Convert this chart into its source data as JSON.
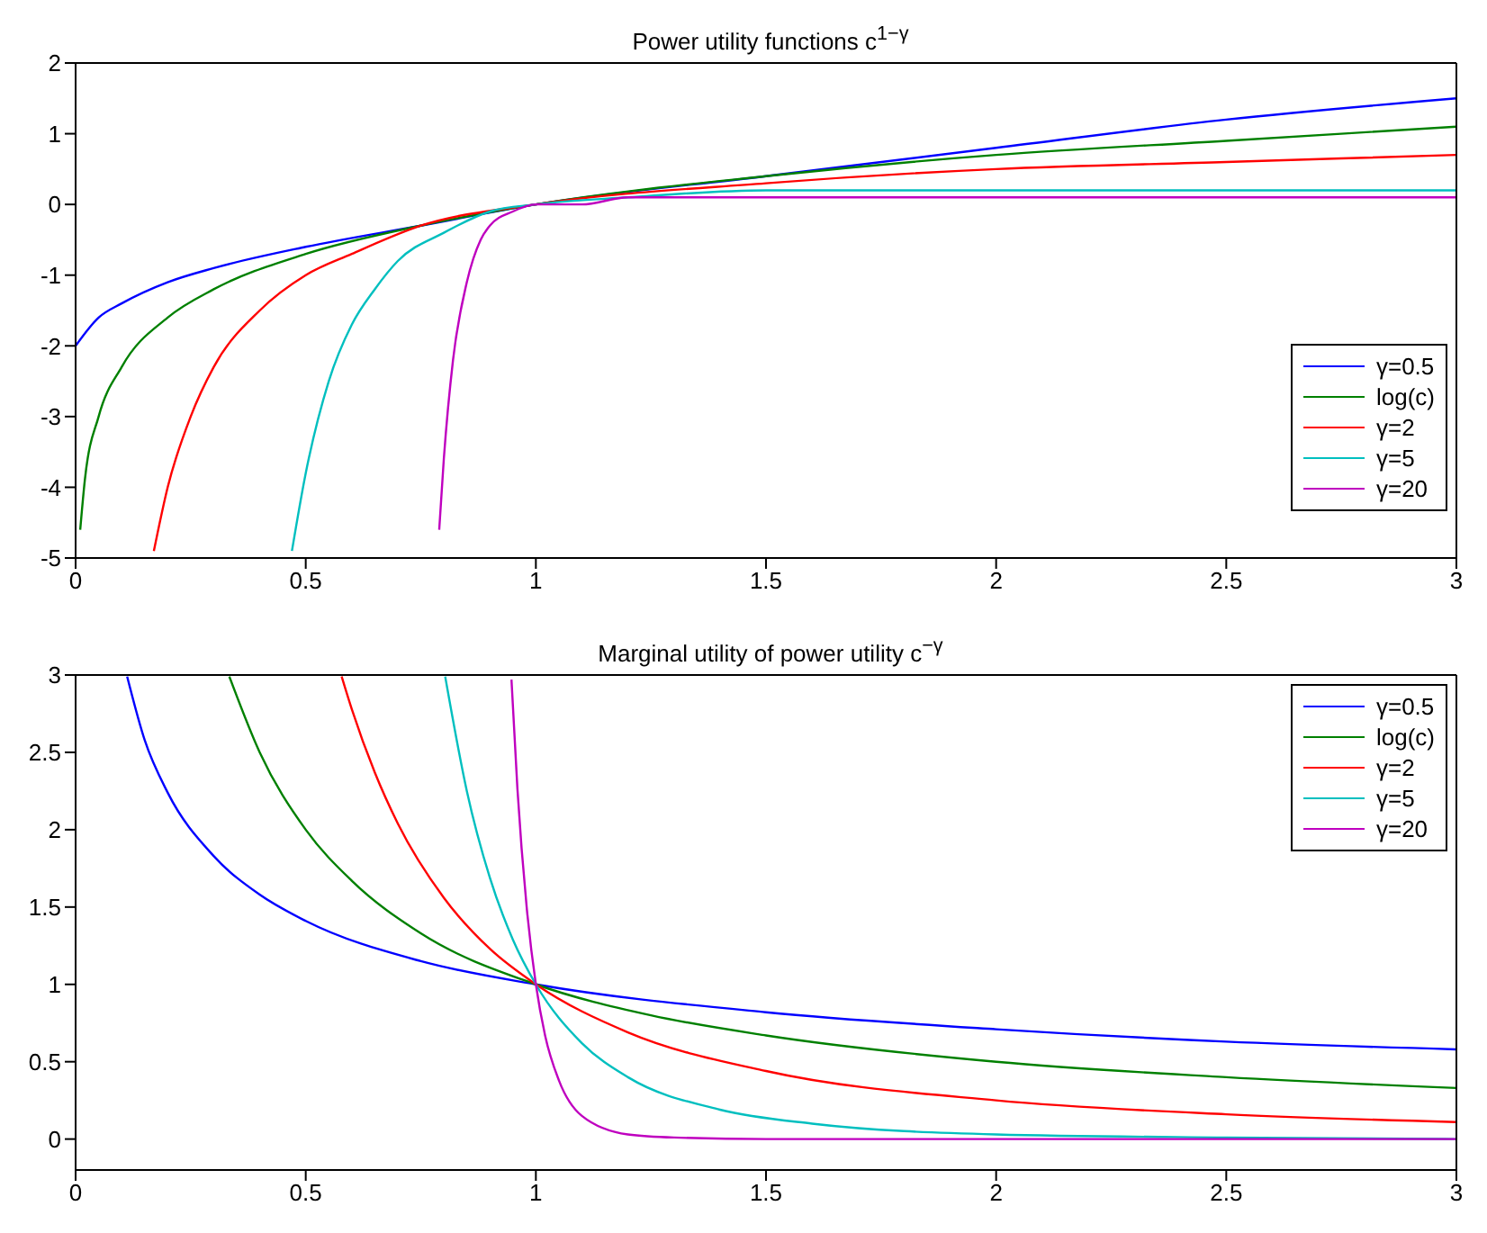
{
  "chart_data": [
    {
      "type": "line",
      "title": "Power utility functions c$^{1−γ}$",
      "xlim": [
        0,
        3
      ],
      "xticks": [
        0,
        0.5,
        1,
        1.5,
        2,
        2.5,
        3
      ],
      "ylim": [
        -5,
        2
      ],
      "yticks": [
        -5,
        -4,
        -3,
        -2,
        -1,
        0,
        1,
        2
      ],
      "grid": false,
      "legend": "bottom right",
      "marker": "none",
      "line_style": "solid",
      "series": [
        {
          "name": "γ=0.5",
          "color": "#0000ff",
          "x": [
            0,
            0.05,
            0.1,
            0.2,
            0.3,
            0.5,
            0.75,
            1,
            1.5,
            2,
            2.5,
            3
          ],
          "values": [
            -2,
            -1.6,
            -1.4,
            -1.1,
            -0.9,
            -0.6,
            -0.3,
            0,
            0.4,
            0.8,
            1.2,
            1.5
          ]
        },
        {
          "name": "log(c)",
          "color": "#008000",
          "x": [
            0.01,
            0.02,
            0.05,
            0.1,
            0.2,
            0.3,
            0.5,
            0.75,
            1,
            1.5,
            2,
            2.5,
            3
          ],
          "values": [
            -4.6,
            -3.9,
            -3,
            -2.3,
            -1.6,
            -1.2,
            -0.7,
            -0.3,
            0,
            0.4,
            0.7,
            0.9,
            1.1
          ]
        },
        {
          "name": "γ=2",
          "color": "#ff0000",
          "x": [
            0.17,
            0.2,
            0.25,
            0.3,
            0.4,
            0.5,
            0.6,
            0.75,
            1,
            1.5,
            2,
            2.5,
            3
          ],
          "values": [
            -4.9,
            -4,
            -3,
            -2.3,
            -1.5,
            -1,
            -0.7,
            -0.3,
            0,
            0.3,
            0.5,
            0.6,
            0.7
          ]
        },
        {
          "name": "γ=5",
          "color": "#00bfbf",
          "x": [
            0.47,
            0.5,
            0.55,
            0.6,
            0.65,
            0.7,
            0.8,
            0.9,
            1,
            1.2,
            1.5,
            2,
            2.5,
            3
          ],
          "values": [
            -4.9,
            -3.8,
            -2.5,
            -1.7,
            -1.2,
            -0.8,
            -0.4,
            -0.1,
            0,
            0.1,
            0.2,
            0.2,
            0.2,
            0.2
          ]
        },
        {
          "name": "γ=20",
          "color": "#bf00bf",
          "x": [
            0.79,
            0.8,
            0.82,
            0.85,
            0.88,
            0.9,
            0.95,
            1,
            1.1,
            1.2,
            1.5,
            2,
            3
          ],
          "values": [
            -4.6,
            -3.6,
            -2.2,
            -1.1,
            -0.5,
            -0.3,
            -0.1,
            0,
            0,
            0.1,
            0.1,
            0.1,
            0.1
          ]
        }
      ]
    },
    {
      "type": "line",
      "title": "Marginal utility of power utility  c$^{−γ}$",
      "xlim": [
        0,
        3
      ],
      "xticks": [
        0,
        0.5,
        1,
        1.5,
        2,
        2.5,
        3
      ],
      "ylim": [
        -0.2,
        3
      ],
      "yticks": [
        0,
        0.5,
        1,
        1.5,
        2,
        2.5,
        3
      ],
      "grid": false,
      "legend": "top right",
      "marker": "none",
      "line_style": "solid",
      "series": [
        {
          "name": "γ=0.5",
          "color": "#0000ff",
          "x": [
            0.112,
            0.15,
            0.2,
            0.3,
            0.4,
            0.5,
            0.75,
            1,
            1.5,
            2,
            2.5,
            3
          ],
          "values": [
            2.99,
            2.58,
            2.24,
            1.83,
            1.58,
            1.41,
            1.15,
            1,
            0.82,
            0.71,
            0.63,
            0.58
          ]
        },
        {
          "name": "log(c)",
          "color": "#008000",
          "x": [
            0.334,
            0.4,
            0.5,
            0.6,
            0.75,
            1,
            1.25,
            1.5,
            2,
            2.5,
            3
          ],
          "values": [
            2.99,
            2.5,
            2,
            1.67,
            1.33,
            1,
            0.8,
            0.67,
            0.5,
            0.4,
            0.33
          ]
        },
        {
          "name": "γ=2",
          "color": "#ff0000",
          "x": [
            0.578,
            0.6,
            0.65,
            0.7,
            0.8,
            0.9,
            1,
            1.2,
            1.5,
            2,
            2.5,
            3
          ],
          "values": [
            2.99,
            2.78,
            2.37,
            2.04,
            1.56,
            1.23,
            1,
            0.69,
            0.44,
            0.25,
            0.16,
            0.11
          ]
        },
        {
          "name": "γ=5",
          "color": "#00bfbf",
          "x": [
            0.803,
            0.85,
            0.9,
            0.95,
            1,
            1.1,
            1.2,
            1.4,
            1.6,
            2,
            2.5,
            3
          ],
          "values": [
            2.99,
            2.25,
            1.69,
            1.29,
            1,
            0.62,
            0.4,
            0.19,
            0.1,
            0.03,
            0.01,
            0
          ]
        },
        {
          "name": "γ=20",
          "color": "#bf00bf",
          "x": [
            0.947,
            0.96,
            0.98,
            1,
            1.02,
            1.05,
            1.1,
            1.2,
            1.3,
            1.5,
            2,
            3
          ],
          "values": [
            2.97,
            2.26,
            1.5,
            1,
            0.67,
            0.38,
            0.15,
            0.03,
            0.01,
            0,
            0,
            0
          ]
        }
      ]
    }
  ]
}
